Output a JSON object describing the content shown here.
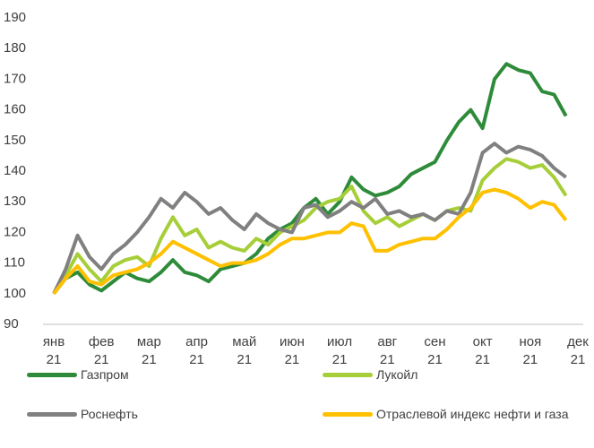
{
  "chart_data": {
    "type": "line",
    "categories": [
      "янв 21",
      null,
      null,
      null,
      "фев 21",
      null,
      null,
      null,
      "мар 21",
      null,
      null,
      null,
      "апр 21",
      null,
      null,
      null,
      "май 21",
      null,
      null,
      null,
      "июн 21",
      null,
      null,
      null,
      "июл 21",
      null,
      null,
      null,
      "авг 21",
      null,
      null,
      null,
      "сен 21",
      null,
      null,
      null,
      "окт 21",
      null,
      null,
      null,
      "ноя 21",
      null,
      null,
      null,
      "дек 21"
    ],
    "series": [
      {
        "name": "Газпром",
        "color": "#2e8b3a",
        "values": [
          100,
          105,
          107,
          103,
          101,
          104,
          107,
          105,
          104,
          107,
          111,
          107,
          106,
          104,
          108,
          109,
          110,
          113,
          118,
          121,
          123,
          128,
          131,
          126,
          130,
          138,
          134,
          132,
          133,
          135,
          139,
          141,
          143,
          150,
          156,
          160,
          154,
          170,
          175,
          173,
          172,
          166,
          165,
          158,
          null
        ]
      },
      {
        "name": "Лукойл",
        "color": "#a6ce39",
        "values": [
          100,
          106,
          113,
          108,
          104,
          109,
          111,
          112,
          109,
          118,
          125,
          119,
          121,
          115,
          117,
          115,
          114,
          118,
          116,
          120,
          122,
          124,
          128,
          130,
          131,
          135,
          127,
          123,
          125,
          122,
          124,
          126,
          124,
          127,
          128,
          127,
          137,
          141,
          144,
          143,
          141,
          142,
          138,
          132,
          null
        ]
      },
      {
        "name": "Роснефть",
        "color": "#808080",
        "values": [
          100,
          108,
          119,
          112,
          108,
          113,
          116,
          120,
          125,
          131,
          128,
          133,
          130,
          126,
          128,
          124,
          121,
          126,
          123,
          121,
          120,
          128,
          129,
          125,
          127,
          130,
          128,
          131,
          126,
          127,
          125,
          126,
          124,
          127,
          126,
          133,
          146,
          149,
          146,
          148,
          147,
          145,
          141,
          138,
          null
        ]
      },
      {
        "name": "Отраслевой индекс нефти и газа",
        "color": "#ffc000",
        "values": [
          100,
          105,
          109,
          104,
          103,
          106,
          107,
          108,
          110,
          113,
          117,
          115,
          113,
          111,
          109,
          110,
          110,
          111,
          113,
          116,
          118,
          118,
          119,
          120,
          120,
          123,
          122,
          114,
          114,
          116,
          117,
          118,
          118,
          121,
          125,
          128,
          133,
          134,
          133,
          131,
          128,
          130,
          129,
          124,
          null
        ]
      }
    ],
    "ylim": [
      90,
      190
    ],
    "yticks": [
      90,
      100,
      110,
      120,
      130,
      140,
      150,
      160,
      170,
      180,
      190
    ]
  }
}
